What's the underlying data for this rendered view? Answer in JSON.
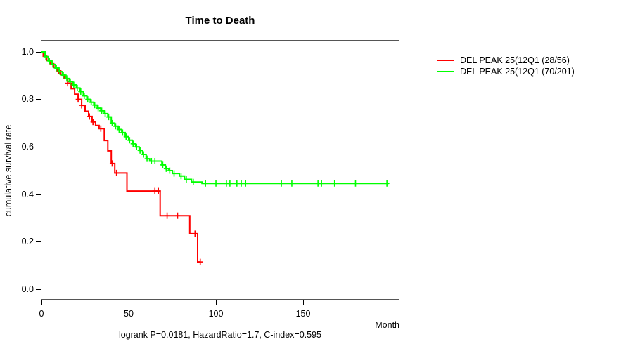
{
  "caption": "logrank P=0.0181, HazardRatio=1.7, C-index=0.595",
  "chart_data": {
    "type": "line",
    "subtype": "kaplan-meier-step",
    "title": "Time to Death",
    "xlabel": "Month",
    "ylabel": "cumulative survival rate",
    "x_ticks": [
      0,
      50,
      100,
      150
    ],
    "y_ticks": [
      "0.0",
      "0.2",
      "0.4",
      "0.6",
      "0.8",
      "1.0"
    ],
    "xlim": [
      0,
      205
    ],
    "ylim": [
      0,
      1.05
    ],
    "grid": false,
    "legend_position": "top-right-outside",
    "series": [
      {
        "name": "DEL PEAK 25(12Q1 (28/56)",
        "color": "#ff0000",
        "events": "28/56",
        "steps": [
          [
            0,
            1.0
          ],
          [
            1,
            0.982
          ],
          [
            3,
            0.964
          ],
          [
            5,
            0.95
          ],
          [
            7,
            0.935
          ],
          [
            9,
            0.92
          ],
          [
            11,
            0.905
          ],
          [
            13,
            0.888
          ],
          [
            15,
            0.868
          ],
          [
            17,
            0.845
          ],
          [
            19,
            0.822
          ],
          [
            21,
            0.8
          ],
          [
            23,
            0.775
          ],
          [
            25,
            0.75
          ],
          [
            27,
            0.728
          ],
          [
            29,
            0.705
          ],
          [
            31,
            0.69
          ],
          [
            33,
            0.677
          ],
          [
            36,
            0.627
          ],
          [
            38,
            0.583
          ],
          [
            40,
            0.53
          ],
          [
            42,
            0.49
          ],
          [
            49,
            0.414
          ],
          [
            68,
            0.31
          ],
          [
            85,
            0.234
          ],
          [
            89.5,
            0.115
          ],
          [
            91,
            0.115
          ]
        ],
        "censor_months": [
          10,
          15,
          21,
          23,
          27.5,
          29.5,
          34,
          40.5,
          43,
          65,
          67,
          72,
          78,
          88,
          91
        ]
      },
      {
        "name": "DEL PEAK 25(12Q1 (70/201)",
        "color": "#00ff00",
        "events": "70/201",
        "steps": [
          [
            0,
            1.0
          ],
          [
            2,
            0.98
          ],
          [
            4,
            0.962
          ],
          [
            6,
            0.947
          ],
          [
            8,
            0.932
          ],
          [
            10,
            0.917
          ],
          [
            12,
            0.902
          ],
          [
            14,
            0.888
          ],
          [
            16,
            0.875
          ],
          [
            18,
            0.861
          ],
          [
            20,
            0.848
          ],
          [
            22,
            0.833
          ],
          [
            24,
            0.815
          ],
          [
            26,
            0.8
          ],
          [
            28,
            0.788
          ],
          [
            30,
            0.776
          ],
          [
            32,
            0.763
          ],
          [
            34,
            0.752
          ],
          [
            36,
            0.74
          ],
          [
            38,
            0.726
          ],
          [
            40,
            0.7
          ],
          [
            42,
            0.687
          ],
          [
            44,
            0.673
          ],
          [
            46,
            0.66
          ],
          [
            48,
            0.643
          ],
          [
            50,
            0.628
          ],
          [
            52,
            0.613
          ],
          [
            54,
            0.6
          ],
          [
            56,
            0.585
          ],
          [
            58,
            0.568
          ],
          [
            60,
            0.55
          ],
          [
            62,
            0.54
          ],
          [
            69,
            0.524
          ],
          [
            71,
            0.508
          ],
          [
            73,
            0.5
          ],
          [
            75,
            0.488
          ],
          [
            79,
            0.477
          ],
          [
            82,
            0.463
          ],
          [
            86,
            0.452
          ],
          [
            92,
            0.446
          ],
          [
            199,
            0.446
          ]
        ],
        "censor_months": [
          2.5,
          4.5,
          6.5,
          8.5,
          10.5,
          12.5,
          14.5,
          16.5,
          18.5,
          20.5,
          22.5,
          24.5,
          26.5,
          28.5,
          30.5,
          32.5,
          34.5,
          36.5,
          38.5,
          40.5,
          42.5,
          44.5,
          46.5,
          48.5,
          50.5,
          52.5,
          54.5,
          56.5,
          58.5,
          60.5,
          63,
          65,
          69.5,
          71.5,
          73.5,
          76,
          80,
          83,
          87,
          94,
          100,
          106,
          108,
          112,
          114.5,
          117,
          137.5,
          143.5,
          158.5,
          160.5,
          168,
          180,
          198
        ]
      }
    ]
  }
}
